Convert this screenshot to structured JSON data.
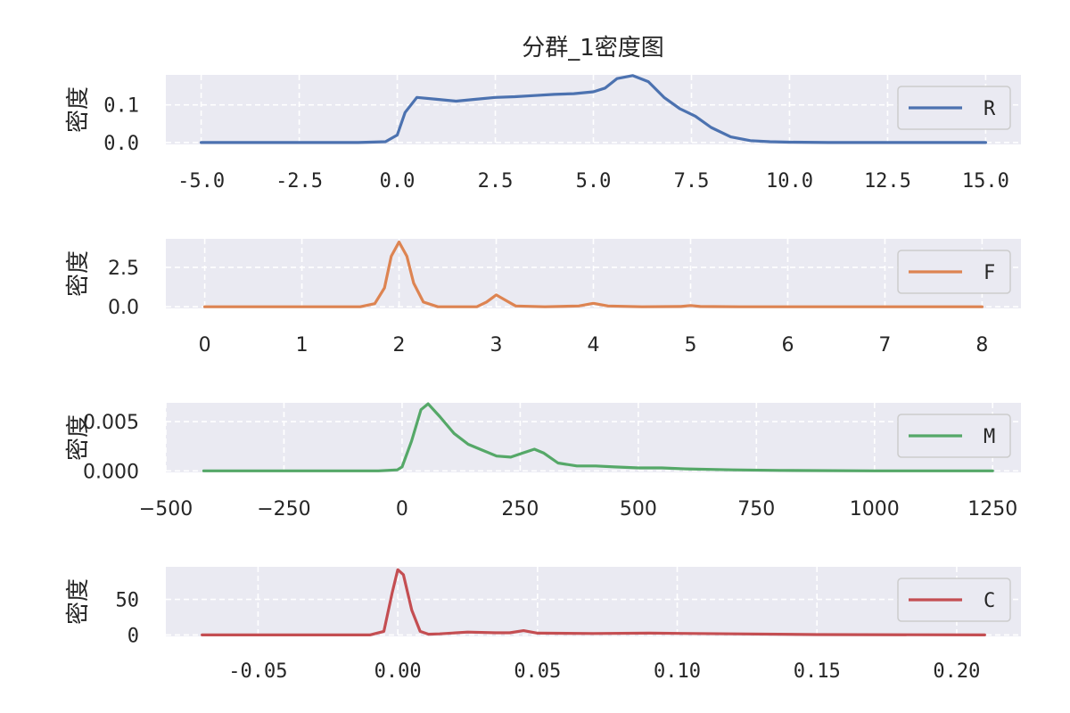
{
  "title": "分群_1密度图",
  "chart_data": [
    {
      "type": "line",
      "series": [
        {
          "name": "R",
          "color": "#4c72b0",
          "x": [
            -5.0,
            -1.0,
            -0.3,
            0.0,
            0.2,
            0.5,
            1.0,
            1.5,
            2.0,
            2.5,
            3.0,
            3.5,
            4.0,
            4.5,
            5.0,
            5.3,
            5.6,
            6.0,
            6.4,
            6.8,
            7.2,
            7.6,
            8.0,
            8.5,
            9.0,
            9.5,
            10.0,
            11.0,
            15.0
          ],
          "y": [
            0.0,
            0.0,
            0.002,
            0.02,
            0.08,
            0.12,
            0.115,
            0.11,
            0.115,
            0.12,
            0.122,
            0.125,
            0.128,
            0.13,
            0.135,
            0.145,
            0.17,
            0.178,
            0.162,
            0.12,
            0.09,
            0.07,
            0.04,
            0.015,
            0.005,
            0.002,
            0.001,
            0.0,
            0.0
          ]
        }
      ],
      "ylabel": "密度",
      "xlim": [
        -5.9,
        15.9
      ],
      "ylim": [
        -0.005,
        0.18
      ],
      "xticks": [
        "-5.0",
        "-2.5",
        "0.0",
        "2.5",
        "5.0",
        "7.5",
        "10.0",
        "12.5",
        "15.0"
      ],
      "xtick_values": [
        -5.0,
        -2.5,
        0.0,
        2.5,
        5.0,
        7.5,
        10.0,
        12.5,
        15.0
      ],
      "yticks": [
        "0.0",
        "0.1"
      ],
      "ytick_values": [
        0.0,
        0.1
      ],
      "legend": "right"
    },
    {
      "type": "line",
      "series": [
        {
          "name": "F",
          "color": "#dd8452",
          "x": [
            0.0,
            1.6,
            1.75,
            1.85,
            1.92,
            2.0,
            2.08,
            2.15,
            2.25,
            2.4,
            2.8,
            2.9,
            3.0,
            3.1,
            3.2,
            3.5,
            3.85,
            4.0,
            4.15,
            4.5,
            4.9,
            5.0,
            5.1,
            5.5,
            8.0
          ],
          "y": [
            0.0,
            0.0,
            0.2,
            1.2,
            3.2,
            4.1,
            3.2,
            1.5,
            0.3,
            0.0,
            0.0,
            0.3,
            0.75,
            0.4,
            0.05,
            0.0,
            0.05,
            0.22,
            0.05,
            0.0,
            0.02,
            0.08,
            0.02,
            0.0,
            0.0
          ]
        }
      ],
      "ylabel": "密度",
      "xlim": [
        -0.4,
        8.4
      ],
      "ylim": [
        -0.1,
        4.3
      ],
      "xticks": [
        "0",
        "1",
        "2",
        "3",
        "4",
        "5",
        "6",
        "7",
        "8"
      ],
      "xtick_values": [
        0,
        1,
        2,
        3,
        4,
        5,
        6,
        7,
        8
      ],
      "yticks": [
        "0.0",
        "2.5"
      ],
      "ytick_values": [
        0.0,
        2.5
      ],
      "legend": "right"
    },
    {
      "type": "line",
      "series": [
        {
          "name": "M",
          "color": "#55a868",
          "x": [
            -420,
            -50,
            -10,
            0,
            20,
            40,
            55,
            80,
            110,
            140,
            170,
            200,
            230,
            255,
            280,
            300,
            330,
            370,
            410,
            450,
            500,
            550,
            600,
            700,
            800,
            1000,
            1250
          ],
          "y": [
            0.0,
            0.0,
            0.0001,
            0.0004,
            0.003,
            0.0062,
            0.0068,
            0.0055,
            0.0038,
            0.0027,
            0.0021,
            0.0015,
            0.0014,
            0.0018,
            0.0022,
            0.0018,
            0.0008,
            0.0005,
            0.0005,
            0.0004,
            0.0003,
            0.0003,
            0.0002,
            0.0001,
            5e-05,
            0.0,
            0.0
          ]
        }
      ],
      "ylabel": "密度",
      "xlim": [
        -500,
        1310
      ],
      "ylim": [
        -0.00015,
        0.0069
      ],
      "xticks": [
        "−500",
        "−250",
        "0",
        "250",
        "500",
        "750",
        "1000",
        "1250"
      ],
      "xtick_values": [
        -500,
        -250,
        0,
        250,
        500,
        750,
        1000,
        1250
      ],
      "yticks": [
        "0.000",
        "0.005"
      ],
      "ytick_values": [
        0.0,
        0.005
      ],
      "legend": "right"
    },
    {
      "type": "line",
      "series": [
        {
          "name": "C",
          "color": "#c44e52",
          "x": [
            -0.07,
            -0.01,
            -0.005,
            -0.002,
            0.0,
            0.002,
            0.005,
            0.008,
            0.011,
            0.015,
            0.025,
            0.035,
            0.04,
            0.045,
            0.05,
            0.07,
            0.09,
            0.12,
            0.15,
            0.21
          ],
          "y": [
            0.0,
            0.0,
            5.0,
            60.0,
            92.0,
            85.0,
            35.0,
            5.0,
            1.0,
            1.5,
            4.0,
            3.0,
            3.0,
            6.0,
            2.5,
            2.0,
            2.5,
            1.5,
            0.5,
            0.0
          ]
        }
      ],
      "ylabel": "密度",
      "xlim": [
        -0.083,
        0.223
      ],
      "ylim": [
        -2.0,
        96.0
      ],
      "xticks": [
        "-0.05",
        "0.00",
        "0.05",
        "0.10",
        "0.15",
        "0.20"
      ],
      "xtick_values": [
        -0.05,
        0.0,
        0.05,
        0.1,
        0.15,
        0.2
      ],
      "yticks": [
        "0",
        "50"
      ],
      "ytick_values": [
        0,
        50
      ],
      "legend": "right"
    }
  ]
}
